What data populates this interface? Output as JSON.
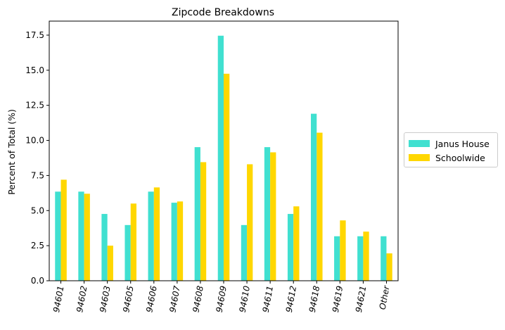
{
  "chart_data": {
    "type": "bar",
    "title": "Zipcode Breakdowns",
    "xlabel": "",
    "ylabel": "Percent of Total (%)",
    "categories": [
      "94601",
      "94602",
      "94603",
      "94605",
      "94606",
      "94607",
      "94608",
      "94609",
      "94610",
      "94611",
      "94612",
      "94618",
      "94619",
      "94621",
      "Other"
    ],
    "series": [
      {
        "name": "Janus House",
        "color": "#40e0d0",
        "values": [
          6.35,
          6.35,
          4.76,
          3.97,
          6.35,
          5.56,
          9.52,
          17.46,
          3.97,
          9.52,
          4.76,
          11.9,
          3.17,
          3.17,
          3.17
        ]
      },
      {
        "name": "Schoolwide",
        "color": "#ffd700",
        "values": [
          7.2,
          6.2,
          2.5,
          5.5,
          6.65,
          5.65,
          8.45,
          14.75,
          8.3,
          9.15,
          5.3,
          10.55,
          4.3,
          3.5,
          1.95
        ]
      }
    ],
    "ylim": [
      0,
      18.5
    ],
    "yticks": [
      "0.0",
      "2.5",
      "5.0",
      "7.5",
      "10.0",
      "12.5",
      "15.0",
      "17.5"
    ],
    "legend": "outside-right",
    "grid": false
  }
}
